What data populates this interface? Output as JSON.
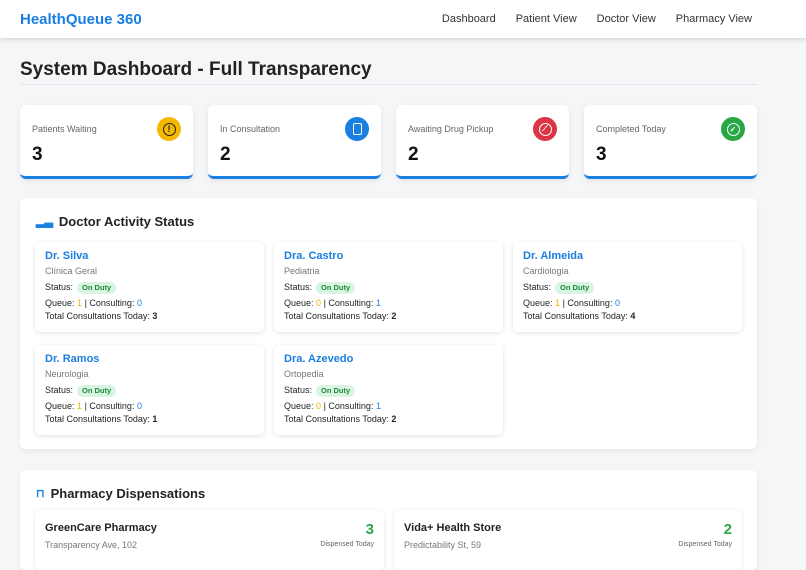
{
  "nav": {
    "brand": "HealthQueue 360",
    "links": [
      "Dashboard",
      "Patient View",
      "Doctor View",
      "Pharmacy View"
    ]
  },
  "page": {
    "title": "System Dashboard - Full Transparency"
  },
  "stats": [
    {
      "label": "Patients Waiting",
      "value": "3",
      "icon": "exclamation-icon",
      "color": "#f5b800"
    },
    {
      "label": "In Consultation",
      "value": "2",
      "icon": "document-icon",
      "color": "#1a7fe0"
    },
    {
      "label": "Awaiting Drug Pickup",
      "value": "2",
      "icon": "pill-icon",
      "color": "#dc3545"
    },
    {
      "label": "Completed Today",
      "value": "3",
      "icon": "check-circle-icon",
      "color": "#28a745"
    }
  ],
  "doctors": {
    "title": "Doctor Activity Status",
    "status_label": "Status:",
    "queue_label": "Queue:",
    "consulting_label": "| Consulting:",
    "total_label": "Total Consultations Today:",
    "items": [
      {
        "name": "Dr. Silva",
        "specialty": "Clínica Geral",
        "status": "On Duty",
        "queue": "1",
        "consulting": "0",
        "total": "3"
      },
      {
        "name": "Dra. Castro",
        "specialty": "Pediatria",
        "status": "On Duty",
        "queue": "0",
        "consulting": "1",
        "total": "2"
      },
      {
        "name": "Dr. Almeida",
        "specialty": "Cardiologia",
        "status": "On Duty",
        "queue": "1",
        "consulting": "0",
        "total": "4"
      },
      {
        "name": "Dr. Ramos",
        "specialty": "Neurologia",
        "status": "On Duty",
        "queue": "1",
        "consulting": "0",
        "total": "1"
      },
      {
        "name": "Dra. Azevedo",
        "specialty": "Ortopedia",
        "status": "On Duty",
        "queue": "0",
        "consulting": "1",
        "total": "2"
      }
    ]
  },
  "pharmacy": {
    "title": "Pharmacy Dispensations",
    "dispensed_label": "Dispensed Today",
    "items": [
      {
        "name": "GreenCare Pharmacy",
        "address": "Transparency Ave, 102",
        "count": "3"
      },
      {
        "name": "Vida+ Health Store",
        "address": "Predictability St, 59",
        "count": "2"
      }
    ]
  }
}
